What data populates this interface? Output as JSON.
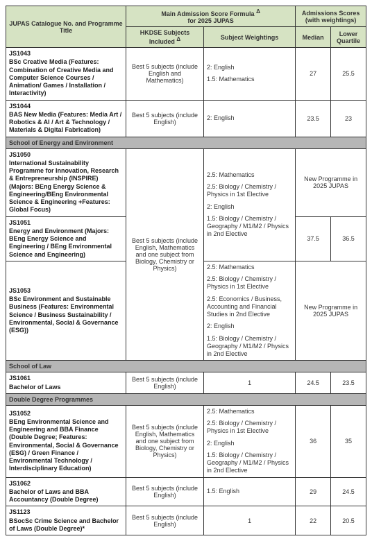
{
  "headers": {
    "col1": "JUPAS Catalogue No. and Programme Title",
    "main_formula": "Main Admission Score Formula",
    "main_formula_sub": "for 2025 JUPAS",
    "sup": "Δ",
    "hkdse": "HKDSE Subjects Included",
    "weightings": "Subject Weightings",
    "scores": "Admissions Scores (with weightings)",
    "median": "Median",
    "lq": "Lower Quartile"
  },
  "rows": [
    {
      "code": "JS1043",
      "title": "BSc Creative Media (Features: Combination of Creative Media and Computer Science Courses / Animation/ Games / Installation / Interactivity)",
      "subjects": "Best 5 subjects (include English and Mathematics)",
      "weights": [
        "2: English",
        "1.5: Mathematics"
      ],
      "median": "27",
      "lq": "25.5"
    },
    {
      "code": "JS1044",
      "title": "BAS New Media (Features: Media Art / Robotics & AI / Art & Technology / Materials & Digital Fabrication)",
      "subjects": "Best 5 subjects (include English)",
      "weights": [
        "2: English"
      ],
      "median": "23.5",
      "lq": "23"
    }
  ],
  "section_energy": "School of Energy and Environment",
  "energy_subjects": "Best 5 subjects (include English, Mathematics and one subject from Biology, Chemistry or Physics)",
  "energy_rows": [
    {
      "code": "JS1050",
      "title": "International Sustainability Programme for Innovation, Research & Entrepreneurship (INSPIRE) (Majors: BEng Energy Science & Engineering/BEng Environmental Science & Engineering +Features: Global Focus)",
      "weights": [
        "2.5: Mathematics",
        "2.5: Biology / Chemistry / Physics in 1st Elective",
        "2: English",
        "1.5: Biology / Chemistry / Geography / M1/M2 / Physics in 2nd Elective"
      ],
      "score_note": "New Programme in 2025 JUPAS"
    },
    {
      "code": "JS1051",
      "title": "Energy and Environment (Majors: BEng Energy Science and Engineering / BEng Environmental Science and Engineering)",
      "median": "37.5",
      "lq": "36.5"
    },
    {
      "code": "JS1053",
      "title": "BSc Environment and Sustainable Business (Features: Environmental Science / Business Sustainability / Environmental, Social & Governance (ESG))",
      "weights": [
        "2.5: Mathematics",
        "2.5: Biology / Chemistry / Physics in 1st Elective",
        "2.5: Economics / Business, Accounting and Financial Studies in 2nd Elective",
        "2: English",
        "1.5: Biology / Chemistry / Geography / M1/M2 / Physics in 2nd Elective"
      ],
      "score_note": "New Programme in 2025 JUPAS"
    }
  ],
  "section_law": "School of Law",
  "law_row": {
    "code": "JS1061",
    "title": "Bachelor of Laws",
    "subjects": "Best 5 subjects (include  English)",
    "weights": [
      "1"
    ],
    "median": "24.5",
    "lq": "23.5"
  },
  "section_dd": "Double Degree Programmes",
  "dd_rows": [
    {
      "code": "JS1052",
      "title": "BEng Environmental Science and Engineering and BBA Finance (Double Degree; Features: Environmental, Social & Governance (ESG) / Green Finance / Environmental Technology / Interdisciplinary Education)",
      "subjects": "Best 5 subjects (include English, Mathematics and one subject from Biology, Chemistry or Physics)",
      "weights": [
        "2.5: Mathematics",
        "2.5: Biology / Chemistry / Physics in 1st Elective",
        "2: English",
        "1.5: Biology / Chemistry / Geography / M1/M2 / Physics in 2nd Elective"
      ],
      "median": "36",
      "lq": "35"
    },
    {
      "code": "JS1062",
      "title": "Bachelor of Laws and BBA Accountancy (Double Degree)",
      "subjects": "Best 5 subjects (include English)",
      "weights": [
        "1.5: English"
      ],
      "median": "29",
      "lq": "24.5"
    },
    {
      "code": "JS1123",
      "title": "BSocSc Crime Science and  Bachelor of Laws (Double Degree)*",
      "subjects": "Best 5 subjects (include English)",
      "weights": [
        "1"
      ],
      "median": "22",
      "lq": "20.5"
    }
  ]
}
